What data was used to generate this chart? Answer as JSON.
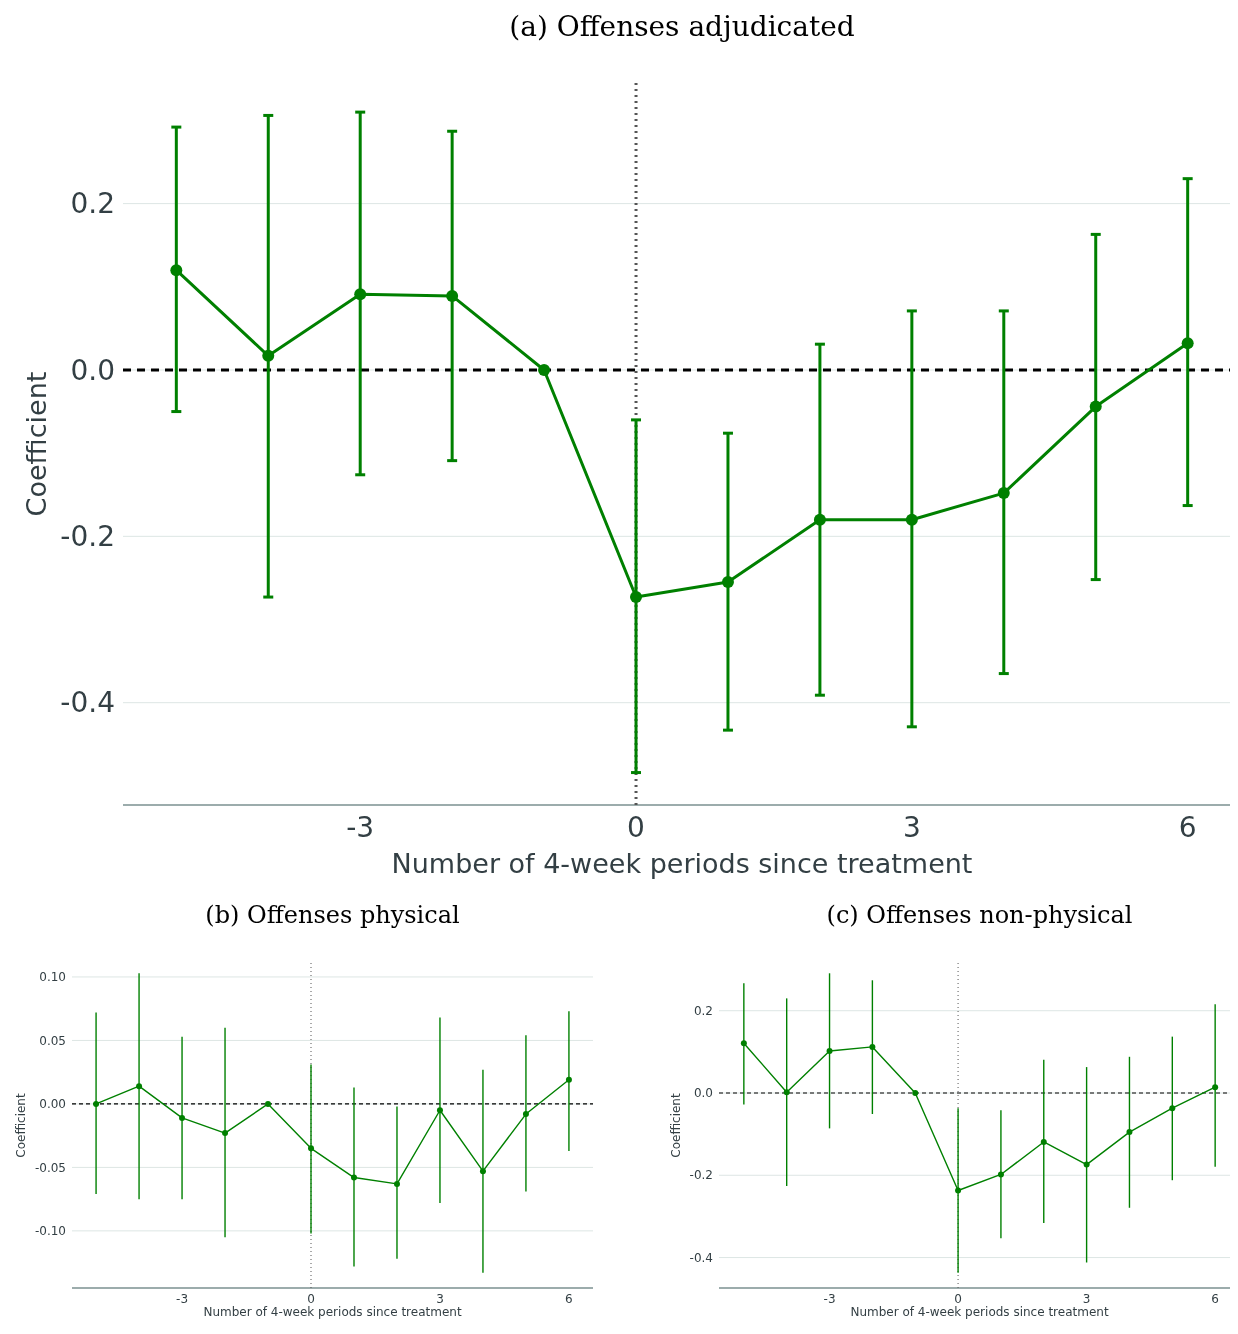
{
  "chart_data": [
    {
      "type": "line",
      "title": "(a) Offenses adjudicated",
      "xlabel": "Number of 4-week periods since treatment",
      "ylabel": "Coefficient",
      "x": [
        -5,
        -4,
        -3,
        -2,
        -1,
        0,
        1,
        2,
        3,
        4,
        5,
        6
      ],
      "series": [
        {
          "color": "#008000",
          "values": [
            0.12,
            0.017,
            0.091,
            0.089,
            0,
            -0.273,
            -0.255,
            -0.18,
            -0.18,
            -0.148,
            -0.044,
            0.032
          ],
          "errors": [
            [
              -0.05,
              0.292
            ],
            [
              -0.273,
              0.306
            ],
            [
              -0.126,
              0.31
            ],
            [
              -0.109,
              0.287
            ],
            null,
            [
              -0.484,
              -0.06
            ],
            [
              -0.433,
              -0.076
            ],
            [
              -0.391,
              0.031
            ],
            [
              -0.429,
              0.071
            ],
            [
              -0.365,
              0.071
            ],
            [
              -0.252,
              0.163
            ],
            [
              -0.163,
              0.23
            ]
          ]
        }
      ],
      "xlim": [
        -5.58,
        6.58
      ],
      "xticks": [
        -3,
        0,
        3,
        6
      ],
      "ylim": [
        -0.523,
        0.345
      ],
      "yticks": [
        {
          "value": -0.4,
          "label": "-0.4"
        },
        {
          "value": -0.2,
          "label": "-0.2"
        },
        {
          "value": 0,
          "label": "0.0"
        },
        0.2
      ],
      "ref_lines": [
        {
          "axis": "y",
          "value": 0,
          "color": "#000000",
          "line_style": "dashed"
        },
        {
          "axis": "x",
          "value": 0,
          "color": "#555555",
          "line_style": "dotted"
        }
      ],
      "grid": "y",
      "marker": "circle",
      "line_style": "solid"
    },
    {
      "type": "line",
      "title": "(b) Offenses physical",
      "xlabel": "Number of 4-week periods since treatment",
      "ylabel": "Coefficient",
      "x": [
        -5,
        -4,
        -3,
        -2,
        -1,
        0,
        1,
        2,
        3,
        4,
        5,
        6
      ],
      "series": [
        {
          "color": "#008000",
          "values": [
            0,
            0.014,
            -0.011,
            -0.023,
            0,
            -0.035,
            -0.058,
            -0.063,
            -0.005,
            -0.053,
            -0.008,
            0.019
          ],
          "errors": [
            [
              -0.071,
              0.072
            ],
            [
              -0.075,
              0.103
            ],
            [
              -0.075,
              0.053
            ],
            [
              -0.105,
              0.06
            ],
            null,
            [
              -0.102,
              0.031
            ],
            [
              -0.128,
              0.013
            ],
            [
              -0.122,
              -0.002
            ],
            [
              -0.078,
              0.068
            ],
            [
              -0.133,
              0.027
            ],
            [
              -0.069,
              0.054
            ],
            [
              -0.037,
              0.073
            ]
          ]
        }
      ],
      "xlim": [
        -5.56,
        6.56
      ],
      "xticks": [
        -3,
        0,
        3,
        6
      ],
      "ylim": [
        -0.145,
        0.111
      ],
      "yticks": [
        {
          "value": -0.1,
          "label": "-0.10"
        },
        {
          "value": -0.05,
          "label": "-0.05"
        },
        {
          "value": 0,
          "label": "0.00"
        },
        {
          "value": 0.05,
          "label": "0.05"
        },
        {
          "value": 0.1,
          "label": "0.10"
        }
      ],
      "ref_lines": [
        {
          "axis": "y",
          "value": 0,
          "color": "#000000",
          "line_style": "dashed"
        },
        {
          "axis": "x",
          "value": 0,
          "color": "#555555",
          "line_style": "dotted"
        }
      ],
      "grid": "y",
      "marker": "circle",
      "line_style": "solid"
    },
    {
      "type": "line",
      "title": "(c) Offenses non-physical",
      "xlabel": "Number of 4-week periods since treatment",
      "ylabel": "Coefficient",
      "x": [
        -5,
        -4,
        -3,
        -2,
        -1,
        0,
        1,
        2,
        3,
        4,
        5,
        6
      ],
      "series": [
        {
          "color": "#008000",
          "values": [
            0.121,
            0.002,
            0.102,
            0.112,
            0,
            -0.237,
            -0.198,
            -0.119,
            -0.174,
            -0.095,
            -0.037,
            0.014
          ],
          "errors": [
            [
              -0.028,
              0.267
            ],
            [
              -0.226,
              0.23
            ],
            [
              -0.086,
              0.291
            ],
            [
              -0.051,
              0.274
            ],
            null,
            [
              -0.437,
              -0.037
            ],
            [
              -0.353,
              -0.042
            ],
            [
              -0.316,
              0.081
            ],
            [
              -0.412,
              0.063
            ],
            [
              -0.279,
              0.088
            ],
            [
              -0.212,
              0.137
            ],
            [
              -0.179,
              0.216
            ]
          ]
        }
      ],
      "xlim": [
        -5.58,
        6.58
      ],
      "xticks": [
        -3,
        0,
        3,
        6
      ],
      "ylim": [
        -0.474,
        0.316
      ],
      "yticks": [
        {
          "value": -0.4,
          "label": "-0.4"
        },
        {
          "value": -0.2,
          "label": "-0.2"
        },
        {
          "value": 0,
          "label": "0.0"
        },
        0.2
      ],
      "ref_lines": [
        {
          "axis": "y",
          "value": 0,
          "color": "#000000",
          "line_style": "dashed"
        },
        {
          "axis": "x",
          "value": 0,
          "color": "#555555",
          "line_style": "dotted"
        }
      ],
      "grid": "y",
      "marker": "circle",
      "line_style": "solid"
    }
  ]
}
